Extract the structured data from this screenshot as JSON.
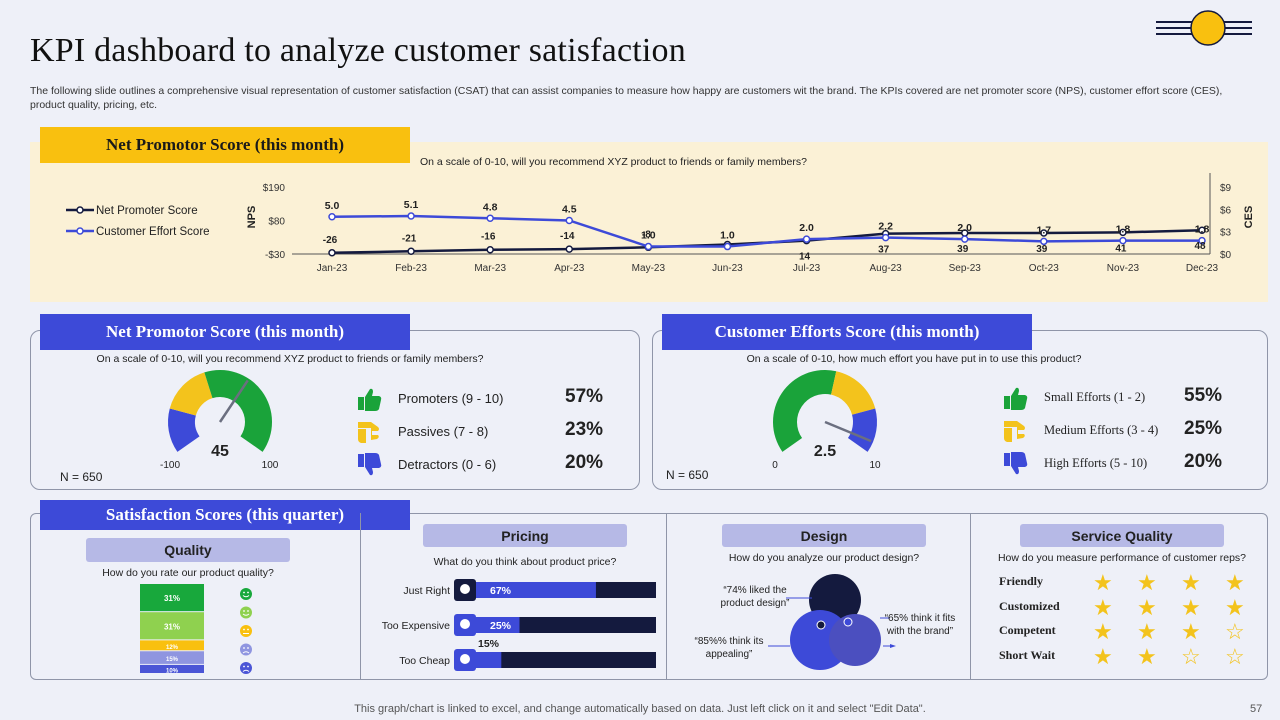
{
  "page": {
    "title": "KPI dashboard to analyze customer satisfaction",
    "subtitle": "The following slide outlines a comprehensive visual representation of customer satisfaction (CSAT) that can assist companies to measure how happy are customers wit the brand. The KPIs covered are net promoter score (NPS), customer effort score (CES), product quality, pricing, etc.",
    "footer": "This graph/chart is linked to excel,  and change automatically based on data. Just left click on it and select \"Edit Data\".",
    "page_number": "57",
    "colors": {
      "yellow": "#f9c00f",
      "blue": "#3d4ad8",
      "navy": "#141a3e",
      "lavender": "#b6b9e6"
    }
  },
  "trend": {
    "header": "Net Promotor Score (this month)",
    "question": "On a scale of 0-10, will you recommend XYZ product to friends or family members?"
  },
  "nps_panel": {
    "header": "Net Promotor Score (this month)",
    "question": "On a scale of 0-10,  will you recommend XYZ product to  friends or family members?",
    "gauge_value": "45",
    "gauge_min": "-100",
    "gauge_max": "100",
    "n_label": "N = 650",
    "rows": [
      {
        "label": "Promoters  (9 - 10)",
        "pct": "57%",
        "icon": "thumbs-up-icon",
        "color": "#1aa33a"
      },
      {
        "label": "Passives  (7 - 8)",
        "pct": "23%",
        "icon": "thumbs-sideways-icon",
        "color": "#f3c31c"
      },
      {
        "label": "Detractors  (0 - 6)",
        "pct": "20%",
        "icon": "thumbs-down-icon",
        "color": "#3d4ad8"
      }
    ]
  },
  "ces_panel": {
    "header": "Customer Efforts Score (this month)",
    "question": "On a scale of 0-10, how much effort you have put in to use this product?",
    "gauge_value": "2.5",
    "gauge_min": "0",
    "gauge_max": "10",
    "n_label": "N = 650",
    "rows": [
      {
        "label": "Small Efforts  (1 - 2)",
        "pct": "55%",
        "icon": "thumbs-up-icon",
        "color": "#1aa33a"
      },
      {
        "label": "Medium Efforts  (3 - 4)",
        "pct": "25%",
        "icon": "thumbs-sideways-icon",
        "color": "#f3c31c"
      },
      {
        "label": "High Efforts  (5 - 10)",
        "pct": "20%",
        "icon": "thumbs-down-icon",
        "color": "#3d4ad8"
      }
    ]
  },
  "satisfaction": {
    "header": "Satisfaction Scores (this quarter)",
    "quality": {
      "title": "Quality",
      "question": "How do you rate our product quality?"
    },
    "pricing": {
      "title": "Pricing",
      "question": "What do you think about product price?"
    },
    "design": {
      "title": "Design",
      "question": "How do you analyze our product design?",
      "callouts": [
        "“74% liked the product design”",
        "“65% think it fits with the brand”",
        "“85%% think its appealing”"
      ]
    },
    "service": {
      "title": "Service Quality",
      "question": "How do you measure performance of customer reps?",
      "rows": [
        {
          "label": "Friendly",
          "stars": 4
        },
        {
          "label": "Customized",
          "stars": 4
        },
        {
          "label": "Competent",
          "stars": 3
        },
        {
          "label": "Short Wait",
          "stars": 2
        }
      ],
      "max_stars": 4
    }
  },
  "chart_data": [
    {
      "type": "line",
      "title": "Net Promotor Score (this month)",
      "x": [
        "Jan-23",
        "Feb-23",
        "Mar-23",
        "Apr-23",
        "May-23",
        "Jun-23",
        "Jul-23",
        "Aug-23",
        "Sep-23",
        "Oct-23",
        "Nov-23",
        "Dec-23"
      ],
      "series": [
        {
          "name": "Net Promoter Score",
          "axis": "left",
          "color": "#141a3e",
          "values": [
            -26,
            -21,
            -16,
            -14,
            -8,
            1,
            14,
            37,
            39,
            39,
            41,
            48
          ]
        },
        {
          "name": "Customer Effort Score",
          "axis": "right",
          "color": "#3d4ad8",
          "values": [
            5.0,
            5.1,
            4.8,
            4.5,
            1.0,
            1.0,
            2.0,
            2.2,
            2.0,
            1.7,
            1.8,
            1.8
          ]
        }
      ],
      "series_labels": [
        [
          "-26",
          "-21",
          "-16",
          "-14",
          "-8",
          "",
          "14",
          "37",
          "39",
          "39",
          "41",
          "48"
        ],
        [
          "5.0",
          "5.1",
          "4.8",
          "4.5",
          "1.0",
          "1.0",
          "2.0",
          "2.2",
          "2.0",
          "1.7",
          "1.8",
          "1.8"
        ]
      ],
      "ylabel": "NPS",
      "y2label": "CES",
      "y_ticks": [
        "$190",
        "$80",
        "-$30"
      ],
      "y_range": [
        -30,
        190
      ],
      "y2_ticks": [
        "$9",
        "$6",
        "$3",
        "$0"
      ],
      "y2_range": [
        0,
        9
      ],
      "legend": "left"
    },
    {
      "type": "gauge",
      "title": "NPS gauge",
      "min": -100,
      "max": 100,
      "value": 45,
      "segments": [
        {
          "name": "Detractors",
          "value": 20,
          "color": "#3d4ad8"
        },
        {
          "name": "Passives",
          "value": 23,
          "color": "#f3c31c"
        },
        {
          "name": "Promoters",
          "value": 57,
          "color": "#1aa33a"
        }
      ]
    },
    {
      "type": "gauge",
      "title": "CES gauge",
      "min": 0,
      "max": 10,
      "value": 2.5,
      "segments": [
        {
          "name": "Small Efforts",
          "value": 55,
          "color": "#1aa33a"
        },
        {
          "name": "Medium Efforts",
          "value": 25,
          "color": "#f3c31c"
        },
        {
          "name": "High Efforts",
          "value": 20,
          "color": "#3d4ad8"
        }
      ]
    },
    {
      "type": "bar",
      "title": "Quality",
      "orientation": "stacked-vertical",
      "categories": [
        "Very satisfied",
        "Satisfied",
        "Neutral",
        "Dissatisfied",
        "Very dissatisfied"
      ],
      "values": [
        31,
        31,
        12,
        15,
        10
      ],
      "value_labels": [
        "31%",
        "31%",
        "12%",
        "15%",
        "10%"
      ],
      "colors": [
        "#18a83c",
        "#8fd14f",
        "#f9c00f",
        "#8f95e0",
        "#4b55d6"
      ]
    },
    {
      "type": "bar",
      "title": "Pricing",
      "orientation": "horizontal",
      "categories": [
        "Just Right",
        "Too Expensive",
        "Too Cheap"
      ],
      "values": [
        67,
        25,
        15
      ],
      "value_labels": [
        "67%",
        "25%",
        "15%"
      ],
      "xlim": [
        0,
        100
      ]
    }
  ]
}
